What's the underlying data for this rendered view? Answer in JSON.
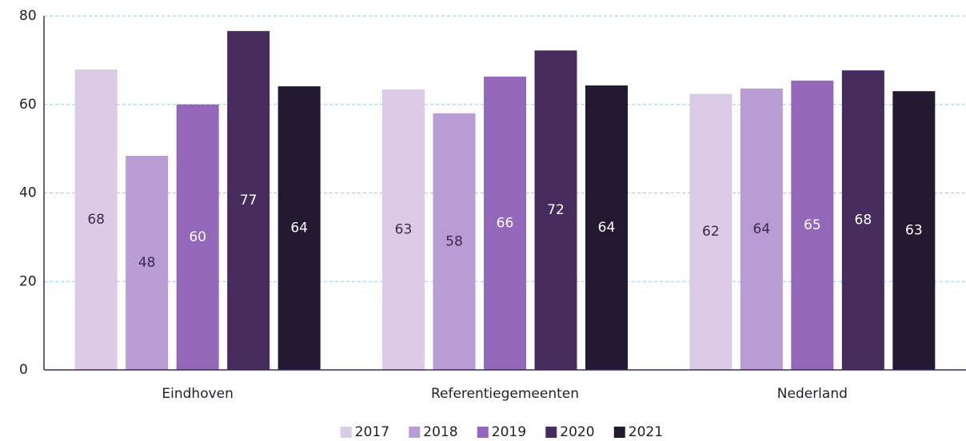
{
  "chart_data": {
    "type": "bar",
    "categories": [
      "Eindhoven",
      "Referentiegemeenten",
      "Nederland"
    ],
    "series": [
      {
        "name": "2017",
        "color": "#dccbe6",
        "label_color": "#3a2a4f",
        "values": [
          67.9,
          63.4,
          62.4
        ],
        "value_labels": [
          "68",
          "63",
          "62"
        ]
      },
      {
        "name": "2018",
        "color": "#b89cd3",
        "label_color": "#3a2a4f",
        "values": [
          48.4,
          58.0,
          63.6
        ],
        "value_labels": [
          "48",
          "58",
          "64"
        ]
      },
      {
        "name": "2019",
        "color": "#9467bb",
        "label_color": "#ffffff",
        "values": [
          60.0,
          66.3,
          65.4
        ],
        "value_labels": [
          "60",
          "66",
          "65"
        ]
      },
      {
        "name": "2020",
        "color": "#452c5c",
        "label_color": "#ffffff",
        "values": [
          76.6,
          72.2,
          67.7
        ],
        "value_labels": [
          "77",
          "72",
          "68"
        ]
      },
      {
        "name": "2021",
        "color": "#231a31",
        "label_color": "#ffffff",
        "values": [
          64.1,
          64.3,
          63.0
        ],
        "value_labels": [
          "64",
          "64",
          "63"
        ]
      }
    ],
    "ylim": [
      0,
      80
    ],
    "yticks": [
      0,
      20,
      40,
      60,
      80
    ],
    "grid": true,
    "legend": "bottom"
  }
}
